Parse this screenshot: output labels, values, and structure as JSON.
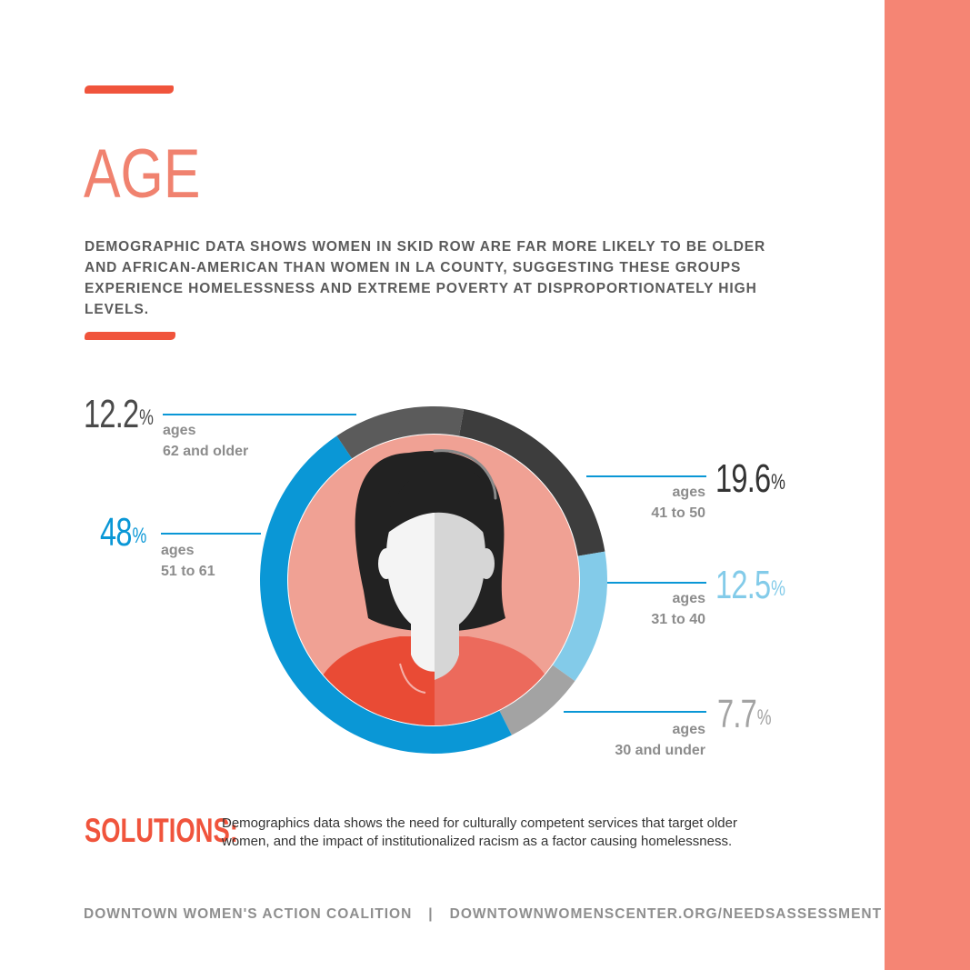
{
  "colors": {
    "accent": "#f0543c",
    "title": "#f0826f",
    "side_band": "#f58574",
    "intro_text": "#5a5a5a",
    "face_bg": "#f0a194",
    "hair": "#222222",
    "shirt_left": "#e94b35",
    "shirt_right": "#ec6a5c",
    "skin_left": "#f4f4f4",
    "skin_right": "#d6d6d6"
  },
  "header": {
    "title": "AGE",
    "intro": "DEMOGRAPHIC DATA SHOWS WOMEN IN SKID ROW ARE FAR MORE LIKELY TO BE OLDER AND AFRICAN-AMERICAN THAN WOMEN IN LA COUNTY, SUGGESTING THESE GROUPS EXPERIENCE HOMELESSNESS AND EXTREME POVERTY AT DISPROPORTIONATELY HIGH LEVELS."
  },
  "chart_data": {
    "type": "pie",
    "title": "",
    "unit_symbol": "%",
    "series": [
      {
        "value": "7.7",
        "value_num": 7.7,
        "label_top": "ages",
        "label_bottom": "30 and under",
        "color": "#a3a3a3",
        "icon": ""
      },
      {
        "value": "12.5",
        "value_num": 12.5,
        "label_top": "ages",
        "label_bottom": "31 to 40",
        "color": "#83cbe9"
      },
      {
        "value": "19.6",
        "value_num": 19.6,
        "label_top": "ages",
        "label_bottom": "41 to 50",
        "color": "#3d3d3d"
      },
      {
        "value": "12.2",
        "value_num": 12.2,
        "label_top": "ages",
        "label_bottom": "62 and older",
        "color": "#5b5b5b"
      },
      {
        "value": "48",
        "value_num": 48,
        "label_top": "ages",
        "label_bottom": "51 to 61",
        "color": "#0a97d6"
      }
    ],
    "legend": "callouts"
  },
  "solutions": {
    "label": "SOLUTIONS:",
    "text": "Demographics data shows the need for culturally competent services that target older women, and the impact of institutionalized racism as a factor causing homelessness."
  },
  "footer": {
    "org": "DOWNTOWN WOMEN'S ACTION COALITION",
    "separator": "|",
    "url": "DOWNTOWNWOMENSCENTER.ORG/NEEDSASSESSMENT"
  }
}
